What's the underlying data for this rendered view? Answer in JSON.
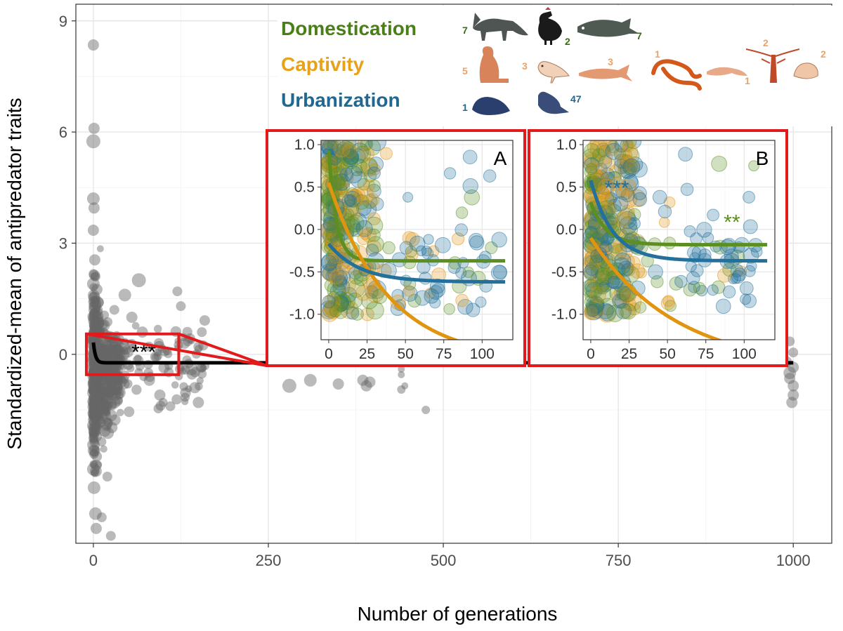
{
  "chart_data": [
    {
      "id": "main",
      "type": "scatter",
      "title": "",
      "xlabel": "Number of generations",
      "ylabel": "Standardized-mean of antipredator traits",
      "xlim": [
        -25,
        1055
      ],
      "ylim": [
        -5.1,
        9.45
      ],
      "x_ticks": [
        0,
        250,
        500,
        750,
        1000
      ],
      "y_ticks": [
        0,
        3,
        6,
        9
      ],
      "grid": true,
      "point_color": "#666666",
      "curve_color": "#000000",
      "series": [
        {
          "name": "All populations",
          "points": [
            {
              "x": 0,
              "y": 8.35,
              "s": 8
            },
            {
              "x": 1,
              "y": 6.1,
              "s": 8
            },
            {
              "x": 0,
              "y": 5.75,
              "s": 10
            },
            {
              "x": 0,
              "y": 4.2,
              "s": 9
            },
            {
              "x": 1,
              "y": 3.95,
              "s": 8
            },
            {
              "x": 0,
              "y": 3.35,
              "s": 8
            },
            {
              "x": 2,
              "y": 2.55,
              "s": 8
            },
            {
              "x": 3,
              "y": 2.1,
              "s": 7
            },
            {
              "x": 5,
              "y": 1.75,
              "s": 8
            },
            {
              "x": 8,
              "y": 1.4,
              "s": 7
            },
            {
              "x": 10,
              "y": 2.85,
              "s": 5
            },
            {
              "x": 14,
              "y": 0.8,
              "s": 7
            },
            {
              "x": 0,
              "y": 1.9,
              "s": 9
            },
            {
              "x": 1,
              "y": 1.2,
              "s": 8
            },
            {
              "x": 2,
              "y": 0.6,
              "s": 9
            },
            {
              "x": 4,
              "y": -0.2,
              "s": 8
            },
            {
              "x": 6,
              "y": -1.0,
              "s": 9
            },
            {
              "x": 3,
              "y": -1.6,
              "s": 8
            },
            {
              "x": 1,
              "y": -2.1,
              "s": 8
            },
            {
              "x": 2,
              "y": -2.6,
              "s": 8
            },
            {
              "x": 0,
              "y": -3.1,
              "s": 9
            },
            {
              "x": 1,
              "y": -3.6,
              "s": 9
            },
            {
              "x": 3,
              "y": -4.3,
              "s": 9
            },
            {
              "x": 4,
              "y": -4.7,
              "s": 8
            },
            {
              "x": 12,
              "y": -4.4,
              "s": 7
            },
            {
              "x": 20,
              "y": -3.3,
              "s": 7
            },
            {
              "x": 25,
              "y": -4.9,
              "s": 7
            },
            {
              "x": 30,
              "y": 1.2,
              "s": 7
            },
            {
              "x": 45,
              "y": 1.6,
              "s": 9
            },
            {
              "x": 55,
              "y": 1.0,
              "s": 8
            },
            {
              "x": 65,
              "y": 2.0,
              "s": 10
            },
            {
              "x": 70,
              "y": 0.6,
              "s": 8
            },
            {
              "x": 80,
              "y": -0.7,
              "s": 8
            },
            {
              "x": 95,
              "y": -1.1,
              "s": 8
            },
            {
              "x": 110,
              "y": -1.4,
              "s": 7
            },
            {
              "x": 125,
              "y": 1.3,
              "s": 7
            },
            {
              "x": 130,
              "y": 0.3,
              "s": 8
            },
            {
              "x": 140,
              "y": -0.4,
              "s": 9
            },
            {
              "x": 145,
              "y": -0.9,
              "s": 8
            },
            {
              "x": 150,
              "y": -1.3,
              "s": 8
            },
            {
              "x": 155,
              "y": 0.6,
              "s": 7
            },
            {
              "x": 120,
              "y": 1.7,
              "s": 7
            },
            {
              "x": 280,
              "y": 1.2,
              "s": 10
            },
            {
              "x": 280,
              "y": -0.85,
              "s": 10
            },
            {
              "x": 305,
              "y": 0.8,
              "s": 8
            },
            {
              "x": 310,
              "y": -0.7,
              "s": 9
            },
            {
              "x": 350,
              "y": 0.75,
              "s": 8
            },
            {
              "x": 350,
              "y": -0.8,
              "s": 8
            },
            {
              "x": 385,
              "y": 0.5,
              "s": 8
            },
            {
              "x": 385,
              "y": -0.7,
              "s": 8
            },
            {
              "x": 390,
              "y": -0.85,
              "s": 8
            },
            {
              "x": 395,
              "y": -0.75,
              "s": 8
            },
            {
              "x": 440,
              "y": 0.65,
              "s": 6
            },
            {
              "x": 440,
              "y": -0.4,
              "s": 5
            },
            {
              "x": 440,
              "y": -0.55,
              "s": 5
            },
            {
              "x": 440,
              "y": -0.95,
              "s": 6
            },
            {
              "x": 445,
              "y": -0.85,
              "s": 5
            },
            {
              "x": 460,
              "y": -0.2,
              "s": 6
            },
            {
              "x": 475,
              "y": -1.5,
              "s": 6
            },
            {
              "x": 480,
              "y": 0.55,
              "s": 6
            },
            {
              "x": 490,
              "y": 0.7,
              "s": 8
            },
            {
              "x": 545,
              "y": 1.2,
              "s": 8
            },
            {
              "x": 548,
              "y": 0.2,
              "s": 7
            },
            {
              "x": 985,
              "y": 0.45,
              "s": 8
            },
            {
              "x": 985,
              "y": 0.1,
              "s": 8
            },
            {
              "x": 990,
              "y": -0.2,
              "s": 8
            },
            {
              "x": 995,
              "y": -0.5,
              "s": 9
            },
            {
              "x": 995,
              "y": -0.65,
              "s": 8
            },
            {
              "x": 1000,
              "y": -0.85,
              "s": 8
            },
            {
              "x": 995,
              "y": 0.35,
              "s": 7
            },
            {
              "x": 1000,
              "y": -1.1,
              "s": 8
            },
            {
              "x": 998,
              "y": -1.3,
              "s": 8
            },
            {
              "x": 1000,
              "y": 0.05,
              "s": 7
            },
            {
              "x": 1000,
              "y": -0.35,
              "s": 8
            }
          ]
        }
      ],
      "fit": {
        "name": "Overall fit",
        "a": 0.55,
        "b": 0.33,
        "c": -0.23,
        "x_range": [
          0,
          1000
        ]
      },
      "highlight_box": {
        "x_range": [
          -10,
          122
        ],
        "y_range": [
          -0.55,
          0.55
        ]
      },
      "significance": {
        "label": "***",
        "x": 72,
        "y": 0.18
      }
    },
    {
      "id": "inset-A",
      "type": "scatter",
      "panel_label": "A",
      "xlim": [
        -5,
        120
      ],
      "ylim": [
        -1.3,
        1.05
      ],
      "x_ticks": [
        0,
        25,
        50,
        75,
        100
      ],
      "y_ticks": [
        1.0,
        0.5,
        0.0,
        -0.5,
        -1.0
      ],
      "x_tick_labels": [
        "0",
        "25",
        "50",
        "75",
        "100"
      ],
      "y_tick_labels": [
        "1.0",
        "0.5",
        "0.0",
        "-0.5",
        "-1.0"
      ],
      "grid": true,
      "series": [
        {
          "name": "Domestication",
          "color": "#5b8f1f",
          "fit": {
            "a": 1.3,
            "b": 0.2,
            "c": -0.37,
            "x_range": [
              0,
              115
            ]
          }
        },
        {
          "name": "Captivity",
          "color": "#e0940f",
          "fit": {
            "a": 2.1,
            "b": 0.026,
            "c": -1.55,
            "x_range": [
              0,
              115
            ]
          }
        },
        {
          "name": "Urbanization",
          "color": "#22709b",
          "fit": {
            "a": 0.45,
            "b": 0.05,
            "c": -0.62,
            "x_range": [
              0,
              115
            ]
          }
        }
      ],
      "significance": []
    },
    {
      "id": "inset-B",
      "type": "scatter",
      "panel_label": "B",
      "xlim": [
        -5,
        120
      ],
      "ylim": [
        -1.3,
        1.05
      ],
      "x_ticks": [
        0,
        25,
        50,
        75,
        100
      ],
      "y_ticks": [
        1.0,
        0.5,
        0.0,
        -0.5,
        -1.0
      ],
      "x_tick_labels": [
        "0",
        "25",
        "50",
        "75",
        "100"
      ],
      "y_tick_labels": [
        "1.0",
        "0.5",
        "0.0",
        "-0.5",
        "-1.0"
      ],
      "grid": true,
      "series": [
        {
          "name": "Domestication",
          "color": "#5b8f1f",
          "fit": {
            "a": 0.5,
            "b": 0.1,
            "c": -0.18,
            "x_range": [
              0,
              115
            ]
          }
        },
        {
          "name": "Captivity",
          "color": "#e0940f",
          "fit": {
            "a": 1.55,
            "b": 0.018,
            "c": -1.65,
            "x_range": [
              0,
              115
            ]
          }
        },
        {
          "name": "Urbanization",
          "color": "#22709b",
          "fit": {
            "a": 0.95,
            "b": 0.07,
            "c": -0.37,
            "x_range": [
              0,
              115
            ]
          }
        }
      ],
      "significance": [
        {
          "label": "***",
          "color": "#22709b",
          "x": 17,
          "y": 0.52
        },
        {
          "label": "**",
          "color": "#5b8f1f",
          "x": 92,
          "y": 0.12
        }
      ]
    }
  ],
  "legend": {
    "position": "top-center",
    "entries": [
      {
        "name": "Domestication",
        "color": "#4a7f17",
        "animals": [
          {
            "icon": "fox-icon",
            "count": "7"
          },
          {
            "icon": "chicken-icon",
            "count": "2"
          },
          {
            "icon": "fish-icon",
            "count": "7"
          }
        ]
      },
      {
        "name": "Captivity",
        "color": "#e8a11a",
        "animals": [
          {
            "icon": "marmot-icon",
            "count": "5"
          },
          {
            "icon": "plover-icon",
            "count": "3"
          },
          {
            "icon": "salmon-icon",
            "count": "3"
          },
          {
            "icon": "snake-icon",
            "count": "1"
          },
          {
            "icon": "salamander-icon",
            "count": "1"
          },
          {
            "icon": "crayfish-icon",
            "count": "2"
          },
          {
            "icon": "snail-icon",
            "count": "2"
          }
        ]
      },
      {
        "name": "Urbanization",
        "color": "#1f6891",
        "animals": [
          {
            "icon": "mole-icon",
            "count": "1"
          },
          {
            "icon": "pigeon-icon",
            "count": "47"
          }
        ]
      }
    ]
  },
  "colors": {
    "highlight": "#e31a1c",
    "grid": "#e6e6e6",
    "axis_text": "#4d4d4d"
  }
}
